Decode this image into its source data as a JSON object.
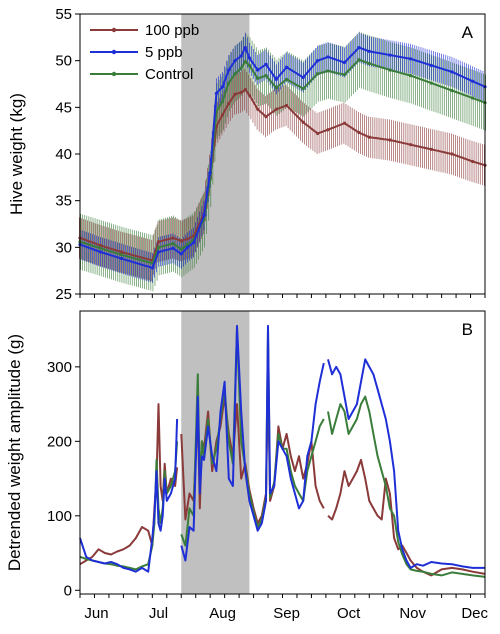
{
  "chart_data": [
    {
      "type": "line",
      "panel_label": "A",
      "ylabel": "Hive weight (kg)",
      "ylim": [
        25,
        55
      ],
      "yticks": [
        25,
        30,
        35,
        40,
        45,
        50,
        55
      ],
      "x_range_days": [
        0,
        196
      ],
      "shaded_region_days": [
        49,
        82
      ],
      "legend": {
        "placement": "top-left",
        "entries": [
          "100 ppb",
          "5 ppb",
          "Control"
        ]
      },
      "series": [
        {
          "name": "100 ppb",
          "color": "#8b3a3a",
          "x": [
            0,
            10,
            20,
            35,
            38,
            45,
            49,
            52,
            55,
            60,
            63,
            66,
            69,
            72,
            75,
            78,
            80,
            82,
            86,
            90,
            95,
            100,
            108,
            115,
            120,
            128,
            135,
            140,
            150,
            160,
            170,
            180,
            190,
            196
          ],
          "y": [
            31.0,
            30.2,
            29.5,
            28.6,
            30.6,
            31.0,
            30.7,
            30.9,
            31.2,
            33.6,
            37.7,
            43.0,
            44.2,
            45.4,
            46.4,
            46.6,
            46.9,
            46.3,
            44.8,
            44.0,
            44.8,
            45.2,
            43.4,
            42.2,
            42.6,
            43.3,
            42.3,
            41.8,
            41.5,
            41.0,
            40.5,
            40.0,
            39.2,
            38.8
          ],
          "err": 2.2
        },
        {
          "name": "5 ppb",
          "color": "#1f2fd6",
          "x": [
            0,
            10,
            20,
            35,
            38,
            45,
            49,
            52,
            55,
            60,
            63,
            66,
            69,
            72,
            75,
            78,
            80,
            82,
            86,
            90,
            95,
            100,
            108,
            115,
            120,
            128,
            135,
            140,
            150,
            160,
            170,
            180,
            190,
            196
          ],
          "y": [
            30.3,
            29.5,
            28.8,
            27.8,
            29.5,
            29.9,
            29.3,
            30.0,
            30.5,
            33.4,
            38.0,
            46.5,
            47.2,
            49.0,
            50.0,
            50.5,
            51.4,
            50.3,
            49.0,
            49.6,
            48.0,
            49.3,
            48.2,
            50.0,
            50.4,
            49.8,
            51.4,
            51.0,
            50.6,
            50.2,
            49.5,
            48.8,
            47.8,
            47.2
          ],
          "err": 1.6
        },
        {
          "name": "Control",
          "color": "#3a7d3a",
          "x": [
            0,
            10,
            20,
            35,
            38,
            45,
            49,
            52,
            55,
            60,
            63,
            66,
            69,
            72,
            75,
            78,
            80,
            82,
            86,
            90,
            95,
            100,
            108,
            115,
            120,
            128,
            135,
            140,
            150,
            160,
            170,
            180,
            190,
            196
          ],
          "y": [
            30.6,
            29.9,
            29.2,
            28.3,
            30.0,
            30.4,
            29.8,
            30.3,
            30.8,
            33.0,
            37.3,
            44.6,
            45.6,
            47.6,
            48.6,
            49.2,
            49.9,
            49.5,
            48.1,
            48.4,
            47.1,
            48.0,
            47.0,
            48.6,
            48.9,
            48.5,
            50.1,
            49.7,
            49.0,
            48.4,
            47.6,
            46.8,
            46.0,
            45.5
          ],
          "err": 3.0
        }
      ]
    },
    {
      "type": "line",
      "panel_label": "B",
      "ylabel": "Detrended weight amplitude (g)",
      "ylim": [
        -5,
        375
      ],
      "yticks": [
        0,
        100,
        200,
        300
      ],
      "x_range_days": [
        0,
        196
      ],
      "shaded_region_days": [
        49,
        82
      ],
      "xticks": [
        {
          "label": "Jun",
          "day": 8
        },
        {
          "label": "Jul",
          "day": 38
        },
        {
          "label": "Aug",
          "day": 69
        },
        {
          "label": "Sep",
          "day": 100
        },
        {
          "label": "Oct",
          "day": 130
        },
        {
          "label": "Nov",
          "day": 161
        },
        {
          "label": "Dec",
          "day": 191
        }
      ],
      "series": [
        {
          "name": "100 ppb",
          "color": "#8b3a3a",
          "x": [
            0,
            3,
            6,
            9,
            12,
            15,
            18,
            21,
            24,
            27,
            30,
            33,
            35,
            36,
            37,
            38,
            39,
            40,
            41,
            42,
            44,
            46,
            47,
            49,
            51,
            53,
            55,
            57,
            58,
            59,
            60,
            62,
            64,
            66,
            68,
            70,
            72,
            74,
            76,
            78,
            80,
            82,
            84,
            86,
            88,
            90,
            91,
            92,
            94,
            96,
            98,
            100,
            102,
            104,
            106,
            108,
            110,
            112,
            114,
            116,
            118,
            120,
            122,
            124,
            126,
            128,
            130,
            132,
            134,
            136,
            138,
            140,
            142,
            144,
            146,
            148,
            150,
            152,
            154,
            156,
            158,
            160,
            163,
            166,
            170,
            175,
            180,
            185,
            190,
            196
          ],
          "y": [
            35,
            40,
            45,
            55,
            50,
            48,
            52,
            55,
            60,
            70,
            85,
            80,
            60,
            110,
            150,
            250,
            140,
            120,
            170,
            130,
            150,
            140,
            165,
            210,
            95,
            130,
            120,
            240,
            110,
            200,
            190,
            240,
            160,
            200,
            220,
            260,
            210,
            180,
            250,
            150,
            170,
            135,
            110,
            90,
            100,
            130,
            280,
            120,
            140,
            220,
            190,
            210,
            180,
            160,
            180,
            150,
            170,
            200,
            140,
            120,
            110,
            100,
            95,
            110,
            130,
            160,
            140,
            150,
            160,
            175,
            150,
            120,
            110,
            100,
            95,
            150,
            130,
            70,
            55,
            60,
            50,
            40,
            30,
            25,
            20,
            28,
            30,
            28,
            25,
            22
          ],
          "segments": [
            [
              0,
              22
            ],
            [
              23,
              60
            ],
            [
              61,
              89
            ]
          ]
        },
        {
          "name": "5 ppb",
          "color": "#1f2fd6",
          "x": [
            0,
            3,
            6,
            9,
            12,
            15,
            18,
            21,
            24,
            27,
            30,
            33,
            35,
            36,
            37,
            38,
            39,
            40,
            41,
            42,
            44,
            46,
            47,
            49,
            51,
            53,
            55,
            57,
            58,
            59,
            60,
            62,
            64,
            66,
            68,
            70,
            72,
            74,
            76,
            78,
            80,
            82,
            84,
            86,
            88,
            90,
            91,
            92,
            94,
            96,
            98,
            100,
            102,
            104,
            106,
            108,
            110,
            112,
            114,
            116,
            118,
            120,
            122,
            124,
            126,
            128,
            130,
            132,
            134,
            136,
            138,
            140,
            142,
            144,
            146,
            148,
            150,
            152,
            154,
            156,
            158,
            160,
            163,
            166,
            170,
            175,
            180,
            185,
            190,
            196
          ],
          "y": [
            70,
            45,
            40,
            38,
            36,
            38,
            35,
            30,
            28,
            25,
            30,
            25,
            70,
            100,
            160,
            90,
            80,
            100,
            150,
            120,
            130,
            150,
            230,
            60,
            40,
            85,
            80,
            260,
            130,
            180,
            175,
            220,
            180,
            160,
            240,
            280,
            150,
            140,
            355,
            240,
            160,
            120,
            100,
            80,
            90,
            120,
            355,
            130,
            140,
            200,
            190,
            180,
            150,
            130,
            110,
            120,
            180,
            200,
            250,
            280,
            305,
            310,
            290,
            300,
            290,
            260,
            230,
            240,
            250,
            280,
            310,
            300,
            290,
            270,
            250,
            230,
            200,
            160,
            80,
            55,
            40,
            30,
            35,
            33,
            38,
            36,
            35,
            32,
            30,
            30
          ],
          "segments": [
            [
              0,
              22
            ],
            [
              23,
              60
            ],
            [
              61,
              89
            ]
          ]
        },
        {
          "name": "Control",
          "color": "#3a7d3a",
          "x": [
            0,
            3,
            6,
            9,
            12,
            15,
            18,
            21,
            24,
            27,
            30,
            33,
            35,
            36,
            37,
            38,
            39,
            40,
            41,
            42,
            44,
            46,
            47,
            49,
            51,
            53,
            55,
            57,
            58,
            59,
            60,
            62,
            64,
            66,
            68,
            70,
            72,
            74,
            76,
            78,
            80,
            82,
            84,
            86,
            88,
            90,
            91,
            92,
            94,
            96,
            98,
            100,
            102,
            104,
            106,
            108,
            110,
            112,
            114,
            116,
            118,
            120,
            122,
            124,
            126,
            128,
            130,
            132,
            134,
            136,
            138,
            140,
            142,
            144,
            146,
            148,
            150,
            152,
            154,
            156,
            158,
            160,
            163,
            166,
            170,
            175,
            180,
            185,
            190,
            196
          ],
          "y": [
            45,
            42,
            40,
            38,
            36,
            35,
            33,
            32,
            30,
            28,
            32,
            35,
            60,
            90,
            175,
            110,
            90,
            110,
            160,
            130,
            140,
            160,
            200,
            75,
            60,
            110,
            100,
            290,
            140,
            200,
            180,
            230,
            170,
            190,
            230,
            270,
            200,
            170,
            350,
            200,
            165,
            130,
            105,
            85,
            95,
            125,
            350,
            125,
            145,
            210,
            190,
            190,
            160,
            140,
            130,
            120,
            160,
            180,
            200,
            220,
            230,
            240,
            210,
            230,
            250,
            240,
            210,
            220,
            230,
            250,
            260,
            240,
            210,
            180,
            160,
            140,
            110,
            100,
            65,
            48,
            35,
            28,
            26,
            25,
            22,
            20,
            24,
            22,
            20,
            18
          ],
          "segments": [
            [
              0,
              22
            ],
            [
              23,
              60
            ],
            [
              61,
              89
            ]
          ]
        }
      ]
    }
  ]
}
